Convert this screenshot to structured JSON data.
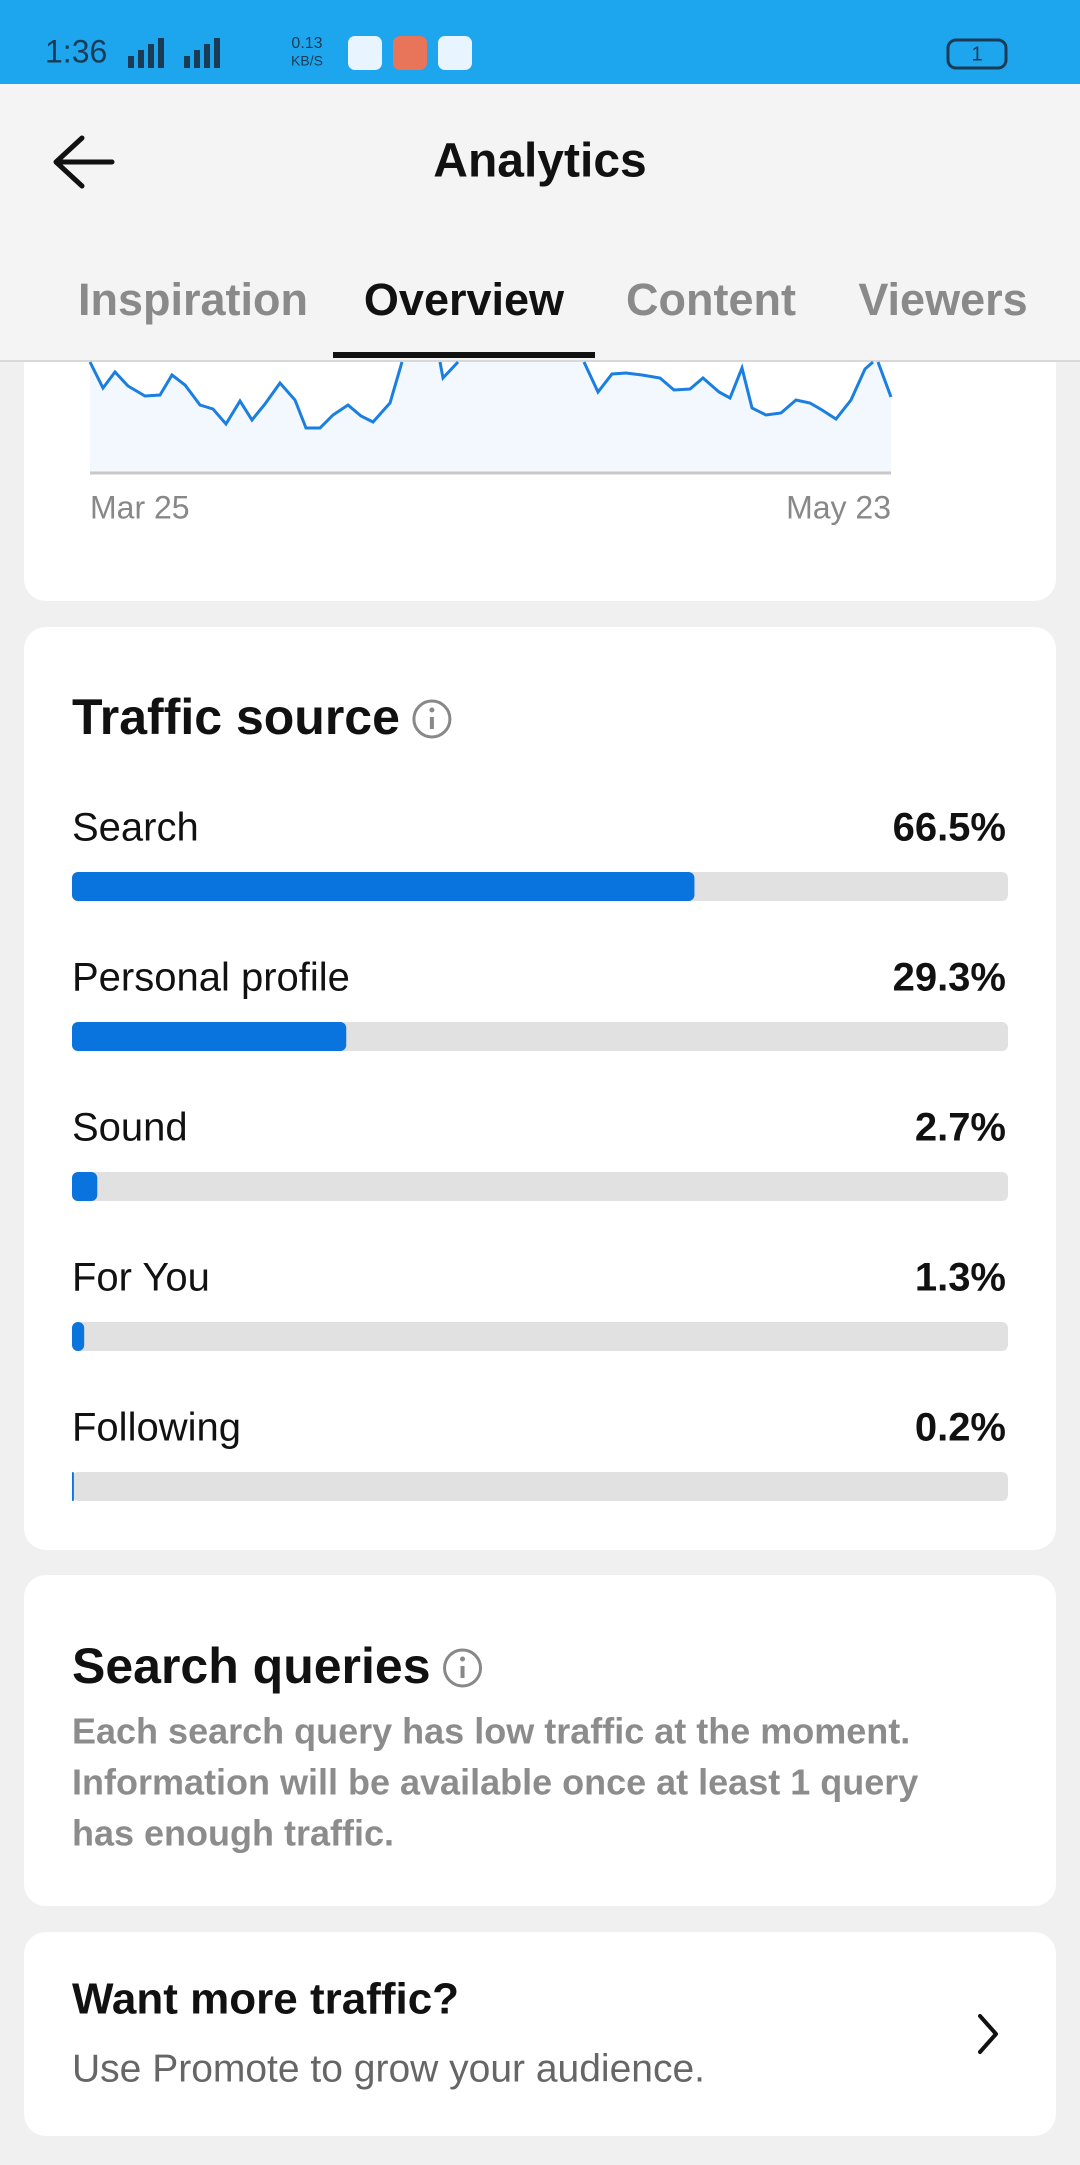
{
  "status_bar": {
    "time": "1:36",
    "net_speed": "0.13",
    "net_unit": "KB/S",
    "battery": "1"
  },
  "header": {
    "title": "Analytics"
  },
  "tabs": [
    "Inspiration",
    "Overview",
    "Content",
    "Viewers"
  ],
  "trend_chart": {
    "x_start": "Mar 25",
    "x_end": "May 23"
  },
  "traffic_source": {
    "title": "Traffic source",
    "sources": [
      {
        "label": "Search",
        "value": 66.5,
        "value_label": "66.5%"
      },
      {
        "label": "Personal profile",
        "value": 29.3,
        "value_label": "29.3%"
      },
      {
        "label": "Sound",
        "value": 2.7,
        "value_label": "2.7%"
      },
      {
        "label": "For You",
        "value": 1.3,
        "value_label": "1.3%"
      },
      {
        "label": "Following",
        "value": 0.2,
        "value_label": "0.2%"
      }
    ]
  },
  "search_queries": {
    "title": "Search queries",
    "lines": [
      "Each search query has low traffic at the moment.",
      "Information will be available once at least 1 query",
      "has enough traffic."
    ]
  },
  "promote": {
    "title": "Want more traffic?",
    "subtitle": "Use Promote to grow your audience."
  }
}
